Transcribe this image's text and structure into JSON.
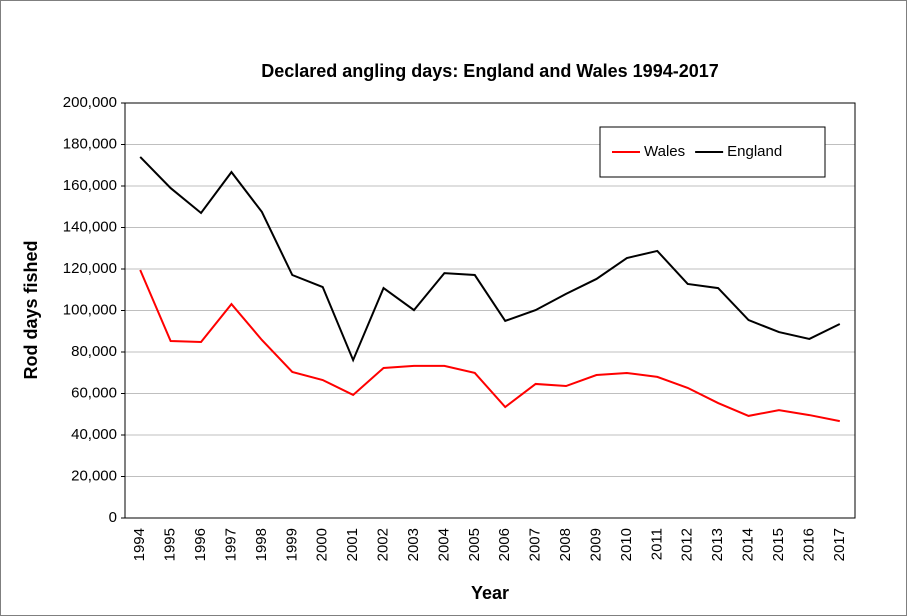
{
  "chart_data": {
    "type": "line",
    "title": "Declared angling days: England and Wales 1994-2017",
    "x_label": "Year",
    "y_label": "Rod days fished",
    "categories": [
      "1994",
      "1995",
      "1996",
      "1997",
      "1998",
      "1999",
      "2000",
      "2001",
      "2002",
      "2003",
      "2004",
      "2005",
      "2006",
      "2007",
      "2008",
      "2009",
      "2010",
      "2011",
      "2012",
      "2013",
      "2014",
      "2015",
      "2016",
      "2017"
    ],
    "series": [
      {
        "name": "Wales",
        "color": "#ff0000",
        "values": [
          119500,
          85300,
          84800,
          103100,
          85800,
          70400,
          66500,
          59300,
          72300,
          73300,
          73300,
          69900,
          53500,
          64600,
          63600,
          68900,
          69900,
          68000,
          62700,
          55400,
          49200,
          52000,
          49600,
          46700
        ]
      },
      {
        "name": "England",
        "color": "#000000",
        "values": [
          174000,
          159000,
          147000,
          166700,
          147500,
          117100,
          111300,
          76100,
          110800,
          100200,
          118000,
          117100,
          95000,
          100200,
          108000,
          115200,
          125300,
          128700,
          112800,
          110800,
          95400,
          89600,
          86300,
          93500
        ]
      }
    ],
    "ylim": [
      0,
      200000
    ],
    "yticks": [
      0,
      {
        "value": 20000,
        "label": "20,000"
      },
      {
        "value": 40000,
        "label": "40,000"
      },
      {
        "value": 60000,
        "label": "60,000"
      },
      {
        "value": 80000,
        "label": "80,000"
      },
      {
        "value": 100000,
        "label": "100,000"
      },
      {
        "value": 120000,
        "label": "120,000"
      },
      {
        "value": 140000,
        "label": "140,000"
      },
      {
        "value": 160000,
        "label": "160,000"
      },
      {
        "value": 180000,
        "label": "180,000"
      },
      {
        "value": 200000,
        "label": "200,000"
      }
    ],
    "grid": true,
    "legend": "upper right"
  }
}
